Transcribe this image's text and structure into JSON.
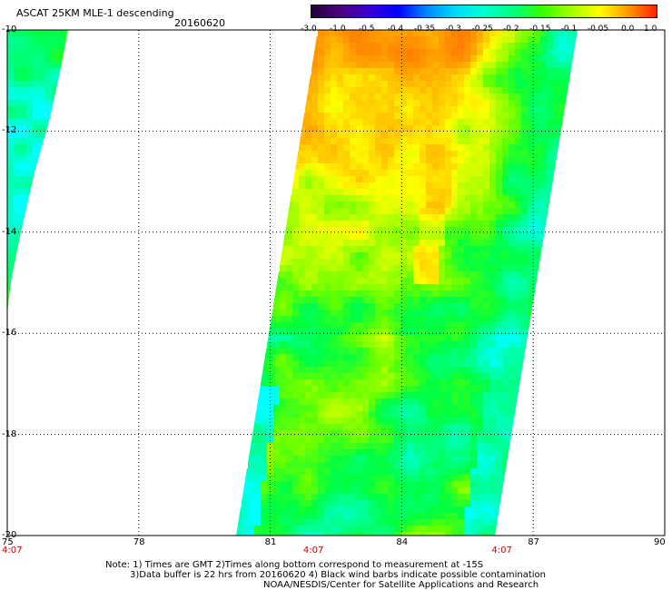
{
  "header": {
    "title": "ASCAT 25KM MLE-1 descending",
    "date": "20160620"
  },
  "colorbar": {
    "tick_labels": [
      "-3.0",
      "-1.0",
      "-0.5",
      "-0.4",
      "-0.35",
      "-0.3",
      "-0.25",
      "-0.2",
      "-0.15",
      "-0.1",
      "-0.05",
      "0.0",
      "1.0"
    ],
    "colors": [
      "#220033",
      "#4b0082",
      "#3a00d0",
      "#0000ff",
      "#0088ff",
      "#00d8ff",
      "#00ffd0",
      "#00ff80",
      "#33ff00",
      "#a0ff00",
      "#ffff00",
      "#ff9900",
      "#ff2200"
    ]
  },
  "map": {
    "lon_labels": [
      "75",
      "78",
      "81",
      "84",
      "87",
      "90"
    ],
    "lon_values": [
      75,
      78,
      81,
      84,
      87,
      90
    ],
    "lat_labels": [
      "-10",
      "-12",
      "-14",
      "-16",
      "-18",
      "-20"
    ],
    "lat_values": [
      -10,
      -12,
      -14,
      -16,
      -18,
      -20
    ],
    "time_labels": [
      "4:07",
      "4:07",
      "4:07"
    ],
    "time_lons": [
      75,
      82,
      86.3
    ],
    "grid": "dotted"
  },
  "notes": {
    "line1": "Note: 1) Times are GMT 2)Times along bottom correspond to measurement at -15S",
    "line2": "3)Data buffer is 22 hrs from 20160620 4) Black wind barbs indicate possible contamination",
    "line3": "NOAA/NESDIS/Center for Satellite Applications and Research"
  }
}
